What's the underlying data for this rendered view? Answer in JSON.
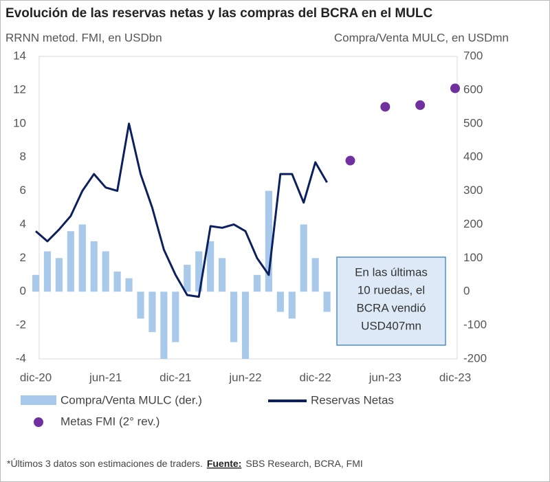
{
  "chart_data": {
    "type": "combo",
    "title": "Evolución de las reservas netas y las compras del BCRA en el MULC",
    "y_label": "RRNN metod. FMI, en USDbn",
    "y2_label": "Compra/Venta MULC, en USDmn",
    "x": [
      "2020-12",
      "2021-01",
      "2021-02",
      "2021-03",
      "2021-04",
      "2021-05",
      "2021-06",
      "2021-07",
      "2021-08",
      "2021-09",
      "2021-10",
      "2021-11",
      "2021-12",
      "2022-01",
      "2022-02",
      "2022-03",
      "2022-04",
      "2022-05",
      "2022-06",
      "2022-07",
      "2022-08",
      "2022-09",
      "2022-10",
      "2022-11",
      "2022-12",
      "2023-01"
    ],
    "xlim": [
      "2020-12",
      "2023-12"
    ],
    "xticks": [
      {
        "value": "2020-12",
        "label": "dic-20"
      },
      {
        "value": "2021-06",
        "label": "jun-21"
      },
      {
        "value": "2021-12",
        "label": "dic-21"
      },
      {
        "value": "2022-06",
        "label": "jun-22"
      },
      {
        "value": "2022-12",
        "label": "dic-22"
      },
      {
        "value": "2023-06",
        "label": "jun-23"
      },
      {
        "value": "2023-12",
        "label": "dic-23"
      }
    ],
    "ylim": [
      -4,
      14
    ],
    "yticks": [
      -4,
      -2,
      0,
      2,
      4,
      6,
      8,
      10,
      12,
      14
    ],
    "y2lim": [
      -200,
      700
    ],
    "y2ticks": [
      -200,
      -100,
      0,
      100,
      200,
      300,
      400,
      500,
      600,
      700
    ],
    "series": [
      {
        "name": "Compra/Venta MULC (der.)",
        "type": "bar",
        "axis": "y2",
        "color": "#a9c9ea",
        "values": [
          50,
          120,
          100,
          180,
          200,
          150,
          120,
          60,
          40,
          -80,
          -120,
          -200,
          -150,
          80,
          120,
          150,
          100,
          -150,
          -200,
          50,
          300,
          -60,
          -80,
          200,
          100,
          -60
        ]
      },
      {
        "name": "Reservas Netas",
        "type": "line",
        "color": "#0c1f5e",
        "values": [
          3.6,
          3.0,
          3.7,
          4.5,
          6.0,
          7.0,
          6.2,
          6.0,
          10.0,
          7.0,
          5.0,
          2.5,
          1.0,
          -0.2,
          -0.3,
          3.9,
          3.8,
          4.0,
          3.6,
          2.0,
          1.0,
          7.0,
          7.0,
          5.3,
          7.7,
          6.5
        ]
      },
      {
        "name": "Metas FMI (2° rev.)",
        "type": "scatter",
        "color": "#7030a0",
        "x": [
          "2023-03",
          "2023-06",
          "2023-09",
          "2023-12"
        ],
        "values": [
          7.8,
          11.0,
          11.1,
          12.1
        ]
      }
    ],
    "annotation": [
      "En las últimas",
      "10 ruedas, el",
      "BCRA vendió",
      "USD407mn"
    ],
    "footnote": "*Últimos 3 datos son estimaciones de traders.",
    "source_label": "Fuente:",
    "source": "SBS Research, BCRA, FMI"
  }
}
